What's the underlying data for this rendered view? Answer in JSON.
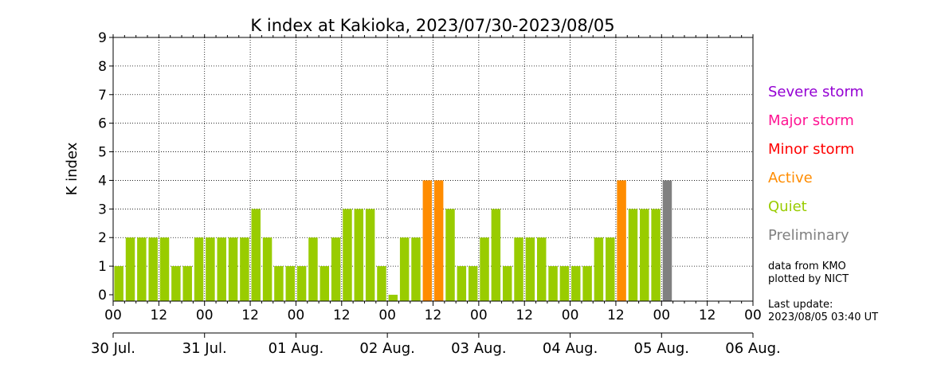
{
  "chart_data": {
    "type": "bar",
    "title": "K index at Kakioka, 2023/07/30-2023/08/05",
    "ylabel": "K index",
    "xlabel": "",
    "ylim": [
      0,
      9
    ],
    "yticks": [
      "0",
      "1",
      "2",
      "3",
      "4",
      "5",
      "6",
      "7",
      "8",
      "9"
    ],
    "x_hour_ticks": [
      "00",
      "12",
      "00",
      "12",
      "00",
      "12",
      "00",
      "12",
      "00",
      "12",
      "00",
      "12",
      "00",
      "12",
      "00"
    ],
    "date_labels": [
      "30 Jul.",
      "31 Jul.",
      "01 Aug.",
      "02 Aug.",
      "03 Aug.",
      "04 Aug.",
      "05 Aug.",
      "06 Aug."
    ],
    "interval_hours": 3,
    "total_intervals": 56,
    "values": [
      1,
      2,
      2,
      2,
      2,
      1,
      1,
      2,
      2,
      2,
      2,
      2,
      3,
      2,
      1,
      1,
      1,
      2,
      1,
      2,
      3,
      3,
      3,
      1,
      0,
      2,
      2,
      4,
      4,
      3,
      1,
      1,
      2,
      3,
      1,
      2,
      2,
      2,
      1,
      1,
      1,
      1,
      2,
      2,
      4,
      3,
      3,
      3,
      4
    ],
    "bar_categories": [
      "Quiet",
      "Quiet",
      "Quiet",
      "Quiet",
      "Quiet",
      "Quiet",
      "Quiet",
      "Quiet",
      "Quiet",
      "Quiet",
      "Quiet",
      "Quiet",
      "Quiet",
      "Quiet",
      "Quiet",
      "Quiet",
      "Quiet",
      "Quiet",
      "Quiet",
      "Quiet",
      "Quiet",
      "Quiet",
      "Quiet",
      "Quiet",
      "Quiet",
      "Quiet",
      "Quiet",
      "Active",
      "Active",
      "Quiet",
      "Quiet",
      "Quiet",
      "Quiet",
      "Quiet",
      "Quiet",
      "Quiet",
      "Quiet",
      "Quiet",
      "Quiet",
      "Quiet",
      "Quiet",
      "Quiet",
      "Quiet",
      "Quiet",
      "Active",
      "Quiet",
      "Quiet",
      "Quiet",
      "Preliminary"
    ],
    "grid": true,
    "legend_placement": "right"
  },
  "legend": [
    {
      "label": "Severe storm",
      "color": "#9400d3"
    },
    {
      "label": "Major storm",
      "color": "#ff1493"
    },
    {
      "label": "Minor storm",
      "color": "#ff0000"
    },
    {
      "label": "Active",
      "color": "#ff8c00"
    },
    {
      "label": "Quiet",
      "color": "#99cc00"
    },
    {
      "label": "Preliminary",
      "color": "#808080"
    }
  ],
  "notes": {
    "source_line1": "data from KMO",
    "source_line2": "plotted by NICT",
    "update_line1": "Last update:",
    "update_line2": "2023/08/05 03:40 UT"
  }
}
